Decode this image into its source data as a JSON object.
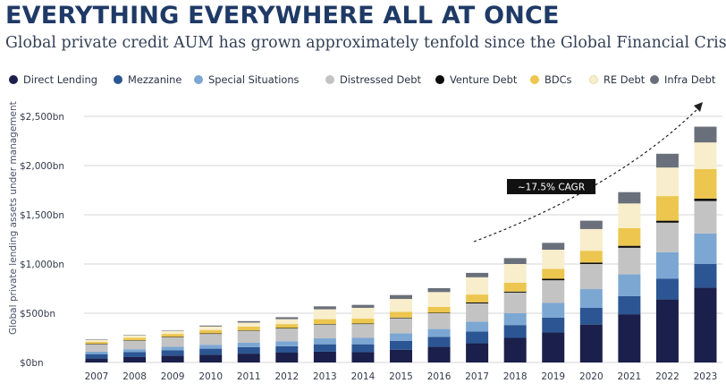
{
  "header": {
    "title": "EVERYTHING EVERYWHERE ALL AT ONCE",
    "subtitle": "Global private credit AUM has grown approximately tenfold since the Global Financial Crisis"
  },
  "chart_data": {
    "type": "bar",
    "stacked": true,
    "title": "EVERYTHING EVERYWHERE ALL AT ONCE",
    "subtitle": "Global private credit AUM has grown approximately tenfold since the Global Financial Crisis",
    "xlabel": "",
    "ylabel": "Global private lending assets under management",
    "ylim": [
      0,
      2500
    ],
    "yticks": [
      0,
      500,
      1000,
      1500,
      2000,
      2500
    ],
    "ytick_labels": [
      "$0bn",
      "$500bn",
      "$1,000bn",
      "$1,500bn",
      "$2,000bn",
      "$2,500bn"
    ],
    "grid": "horizontal",
    "legend_position": "top",
    "categories": [
      "2007",
      "2008",
      "2009",
      "2010",
      "2011",
      "2012",
      "2013",
      "2014",
      "2015",
      "2016",
      "2017",
      "2018",
      "2019",
      "2020",
      "2021",
      "2022",
      "2023"
    ],
    "series": [
      {
        "name": "Direct Lending",
        "color": "#1b1f4b",
        "values": [
          40,
          55,
          70,
          80,
          90,
          100,
          110,
          105,
          130,
          160,
          195,
          250,
          305,
          385,
          490,
          640,
          760
        ]
      },
      {
        "name": "Mezzanine",
        "color": "#2b5693",
        "values": [
          45,
          50,
          55,
          60,
          65,
          65,
          75,
          80,
          90,
          100,
          120,
          130,
          150,
          170,
          185,
          210,
          240
        ]
      },
      {
        "name": "Special Situations",
        "color": "#7ca7d3",
        "values": [
          25,
          30,
          35,
          40,
          45,
          50,
          60,
          65,
          75,
          80,
          100,
          120,
          150,
          190,
          220,
          270,
          310
        ]
      },
      {
        "name": "Distressed Debt",
        "color": "#c3c3c3",
        "values": [
          75,
          85,
          95,
          110,
          120,
          130,
          140,
          140,
          155,
          160,
          185,
          210,
          230,
          255,
          270,
          300,
          330
        ]
      },
      {
        "name": "Venture Debt",
        "color": "#0c0c0c",
        "values": [
          5,
          5,
          5,
          5,
          5,
          5,
          5,
          5,
          5,
          5,
          10,
          10,
          15,
          15,
          20,
          20,
          25
        ]
      },
      {
        "name": "BDCs",
        "color": "#ecc64e",
        "values": [
          20,
          25,
          30,
          35,
          40,
          40,
          50,
          50,
          60,
          60,
          80,
          90,
          100,
          120,
          180,
          250,
          300
        ]
      },
      {
        "name": "RE Debt",
        "color": "#f8eecb",
        "values": [
          20,
          25,
          30,
          35,
          40,
          50,
          100,
          110,
          130,
          150,
          175,
          190,
          195,
          220,
          250,
          290,
          270
        ]
      },
      {
        "name": "Infra Debt",
        "color": "#6a707b",
        "values": [
          5,
          5,
          5,
          10,
          15,
          20,
          30,
          30,
          40,
          40,
          45,
          60,
          70,
          85,
          115,
          140,
          160
        ]
      }
    ],
    "annotations": [
      {
        "text": "~17.5% CAGR",
        "type": "trend-arrow"
      }
    ]
  }
}
